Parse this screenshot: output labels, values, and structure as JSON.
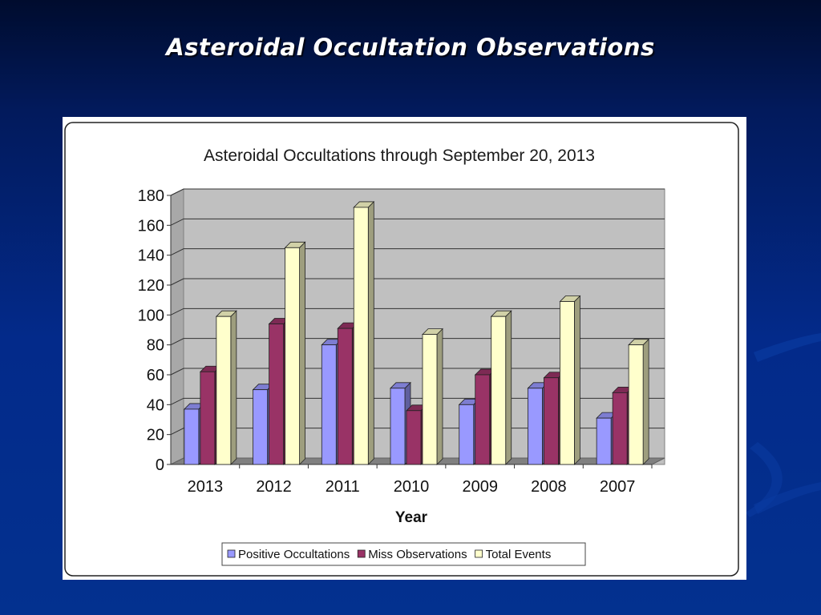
{
  "slide": {
    "title": "Asteroidal Occultation Observations"
  },
  "colors": {
    "background": "#032a8a",
    "positive": "#9999ff",
    "miss": "#993366",
    "total": "#ffffcc",
    "plot_area": "#c0c0c0"
  },
  "chart_data": {
    "type": "bar",
    "title": "Asteroidal Occultations through September 20, 2013",
    "xlabel": "Year",
    "ylabel": "",
    "ylim": [
      0,
      180
    ],
    "yticks": [
      0,
      20,
      40,
      60,
      80,
      100,
      120,
      140,
      160,
      180
    ],
    "grid": true,
    "legend_position": "bottom",
    "categories": [
      "2013",
      "2012",
      "2011",
      "2010",
      "2009",
      "2008",
      "2007"
    ],
    "series": [
      {
        "name": "Positive Occultations",
        "color": "#9999ff",
        "values": [
          37,
          50,
          80,
          51,
          40,
          51,
          31
        ]
      },
      {
        "name": "Miss Observations",
        "color": "#993366",
        "values": [
          62,
          94,
          91,
          36,
          60,
          58,
          48
        ]
      },
      {
        "name": "Total Events",
        "color": "#ffffcc",
        "values": [
          99,
          145,
          172,
          87,
          99,
          109,
          80
        ]
      }
    ]
  }
}
